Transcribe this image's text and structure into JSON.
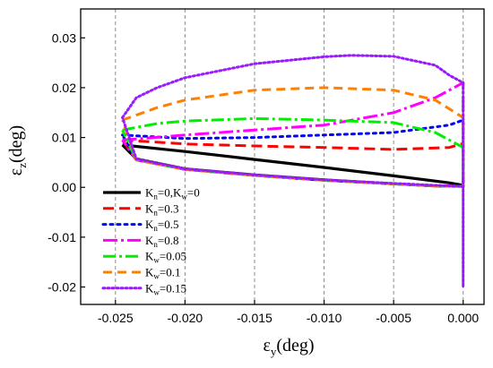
{
  "chart_data": {
    "type": "line",
    "xlabel": {
      "main": "ε",
      "sub": "y",
      "unit": "(deg)"
    },
    "ylabel": {
      "main": "ε",
      "sub": "z",
      "unit": "(deg)"
    },
    "xlim": [
      -0.0275,
      0.0015
    ],
    "ylim": [
      -0.0235,
      0.0358
    ],
    "x_ticks": [
      -0.025,
      -0.02,
      -0.015,
      -0.01,
      -0.005,
      0.0
    ],
    "x_tick_labels": [
      "-0.025",
      "-0.020",
      "-0.015",
      "-0.010",
      "-0.005",
      "0.000"
    ],
    "y_ticks": [
      -0.02,
      -0.01,
      0.0,
      0.01,
      0.02,
      0.03
    ],
    "y_tick_labels": [
      "-0.02",
      "-0.01",
      "0.00",
      "0.01",
      "0.02",
      "0.03"
    ],
    "grid": {
      "x": "dashed-vertical",
      "y": "none"
    },
    "legend_position": "bottom-left",
    "series": [
      {
        "name": "Kn=0,Kw=0",
        "legend": [
          {
            "t": "K"
          },
          {
            "t": "n",
            "sub": true
          },
          {
            "t": "=0,K"
          },
          {
            "t": "w",
            "sub": true
          },
          {
            "t": "=0"
          }
        ],
        "color": "#000000",
        "dash": "solid",
        "width": 3.2,
        "x": [
          -0.0245,
          -0.02,
          -0.015,
          -0.01,
          -0.005,
          -0.001,
          0.0,
          0.0,
          -0.002,
          -0.005,
          -0.01,
          -0.015,
          -0.02,
          -0.0235,
          -0.0245
        ],
        "y": [
          0.0085,
          0.0072,
          0.0056,
          0.004,
          0.0023,
          0.0009,
          0.0004,
          0.0002,
          0.0003,
          0.0007,
          0.0015,
          0.0025,
          0.0037,
          0.0057,
          0.0085
        ]
      },
      {
        "name": "Kn=0.3",
        "legend": [
          {
            "t": "K"
          },
          {
            "t": "n",
            "sub": true
          },
          {
            "t": "=0.3"
          }
        ],
        "color": "#ff0000",
        "dash": "12,6",
        "width": 3,
        "x": [
          -0.0245,
          -0.02,
          -0.015,
          -0.01,
          -0.005,
          -0.001,
          0.0,
          0.0,
          -0.002,
          -0.005,
          -0.01,
          -0.015,
          -0.02,
          -0.0235,
          -0.0245
        ],
        "y": [
          0.0095,
          0.0087,
          0.0083,
          0.008,
          0.0076,
          0.008,
          0.0088,
          0.0002,
          0.0003,
          0.0007,
          0.0014,
          0.0024,
          0.0036,
          0.0055,
          0.0095
        ]
      },
      {
        "name": "Kn=0.5",
        "legend": [
          {
            "t": "K"
          },
          {
            "t": "n",
            "sub": true
          },
          {
            "t": "=0.5"
          }
        ],
        "color": "#0000ff",
        "dash": "3,5",
        "width": 3,
        "x": [
          -0.0245,
          -0.02,
          -0.015,
          -0.01,
          -0.005,
          -0.001,
          0.0,
          0.0,
          -0.002,
          -0.005,
          -0.01,
          -0.015,
          -0.02,
          -0.0235,
          -0.0245
        ],
        "y": [
          0.0105,
          0.0098,
          0.01,
          0.0105,
          0.011,
          0.0125,
          0.0135,
          0.0002,
          0.0003,
          0.0007,
          0.0014,
          0.0024,
          0.0036,
          0.0055,
          0.0105
        ]
      },
      {
        "name": "Kn=0.8",
        "legend": [
          {
            "t": "K"
          },
          {
            "t": "n",
            "sub": true
          },
          {
            "t": "=0.8"
          }
        ],
        "color": "#ff00ff",
        "dash": "16,4,3,4",
        "width": 3,
        "x": [
          -0.0245,
          -0.02,
          -0.015,
          -0.01,
          -0.005,
          -0.002,
          0.0,
          0.0,
          -0.002,
          -0.005,
          -0.01,
          -0.015,
          -0.02,
          -0.0235,
          -0.0245
        ],
        "y": [
          0.0095,
          0.0105,
          0.0115,
          0.0125,
          0.015,
          0.018,
          0.021,
          0.0002,
          0.0003,
          0.0007,
          0.0014,
          0.0024,
          0.0036,
          0.0055,
          0.0095
        ]
      },
      {
        "name": "Kw=0.05",
        "legend": [
          {
            "t": "K"
          },
          {
            "t": "w",
            "sub": true
          },
          {
            "t": "=0.05"
          }
        ],
        "color": "#00ee00",
        "dash": "14,4,3,4",
        "width": 3,
        "x": [
          -0.0245,
          -0.022,
          -0.02,
          -0.015,
          -0.01,
          -0.005,
          -0.002,
          0.0,
          0.0,
          -0.002,
          -0.005,
          -0.01,
          -0.015,
          -0.02,
          -0.0235,
          -0.0245
        ],
        "y": [
          0.0115,
          0.0128,
          0.0133,
          0.0138,
          0.0135,
          0.013,
          0.011,
          0.008,
          0.0002,
          0.0003,
          0.0007,
          0.0014,
          0.0024,
          0.0036,
          0.0055,
          0.0115
        ]
      },
      {
        "name": "Kw=0.1",
        "legend": [
          {
            "t": "K"
          },
          {
            "t": "w",
            "sub": true
          },
          {
            "t": "=0.1"
          }
        ],
        "color": "#ff8000",
        "dash": "10,6",
        "width": 3,
        "x": [
          -0.0245,
          -0.022,
          -0.02,
          -0.015,
          -0.01,
          -0.005,
          -0.002,
          0.0,
          0.0,
          -0.002,
          -0.005,
          -0.01,
          -0.015,
          -0.02,
          -0.0235,
          -0.0245
        ],
        "y": [
          0.0135,
          0.016,
          0.0175,
          0.0195,
          0.02,
          0.0195,
          0.0175,
          0.014,
          0.0002,
          0.0003,
          0.0007,
          0.0014,
          0.0024,
          0.0036,
          0.0055,
          0.0135
        ]
      },
      {
        "name": "Kw=0.15",
        "legend": [
          {
            "t": "K"
          },
          {
            "t": "w",
            "sub": true
          },
          {
            "t": "=0.15"
          }
        ],
        "color": "#9a1aff",
        "dash": "2,3",
        "width": 3,
        "x": [
          -0.0245,
          -0.0235,
          -0.022,
          -0.02,
          -0.015,
          -0.01,
          -0.008,
          -0.005,
          -0.002,
          -0.001,
          0.0,
          0.0,
          0.0,
          0.0,
          -0.002,
          -0.005,
          -0.01,
          -0.015,
          -0.02,
          -0.0235,
          -0.0245
        ],
        "y": [
          0.014,
          0.018,
          0.02,
          0.022,
          0.0248,
          0.0262,
          0.0265,
          0.0263,
          0.0245,
          0.0225,
          0.021,
          0.0,
          -0.02,
          0.0002,
          0.0004,
          0.0008,
          0.0015,
          0.0025,
          0.0037,
          0.0057,
          0.014
        ]
      }
    ]
  }
}
